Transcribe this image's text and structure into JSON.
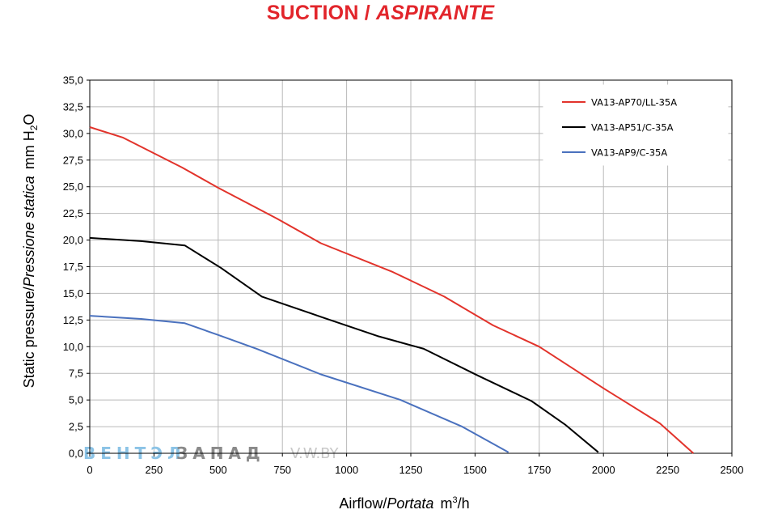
{
  "title": {
    "main": "SUCTION",
    "sep": " / ",
    "italic": "ASPIRANTE"
  },
  "colors": {
    "title": "#e2252b",
    "grid": "#b9b9b9"
  },
  "axes": {
    "ylabel_main": "Static pressure/",
    "ylabel_italic": "Pressione statica",
    "ylabel_unit_prefix": "mm  H",
    "ylabel_unit_sub": "2",
    "ylabel_unit_suffix": "O",
    "xlabel_main": "Airflow/",
    "xlabel_italic": "Portata",
    "xlabel_unit_prefix": "m",
    "xlabel_unit_sup": "3",
    "xlabel_unit_suffix": "/h"
  },
  "watermark": {
    "part1": "ВЕНТЭЛ",
    "part2": "ЗАПАД",
    "part3": "V.W.BY"
  },
  "chart_data": {
    "type": "line",
    "xlim": [
      0,
      2500
    ],
    "ylim": [
      0,
      35
    ],
    "xticks": [
      0,
      250,
      500,
      750,
      1000,
      1250,
      1500,
      1750,
      2000,
      2250,
      2500
    ],
    "yticks": [
      0,
      2.5,
      5,
      7.5,
      10,
      12.5,
      15,
      17.5,
      20,
      22.5,
      25,
      27.5,
      30,
      32.5,
      35
    ],
    "xtick_labels": [
      "0",
      "250",
      "500",
      "750",
      "1000",
      "1250",
      "1500",
      "1750",
      "2000",
      "2250",
      "2500"
    ],
    "ytick_labels": [
      "0,0",
      "2,5",
      "5,0",
      "7,5",
      "10,0",
      "12,5",
      "15,0",
      "17,5",
      "20,0",
      "22,5",
      "25,0",
      "27,5",
      "30,0",
      "32,5",
      "35,0"
    ],
    "grid": true,
    "legend_position": "top-right",
    "series": [
      {
        "name": "VA13-AP70/LL-35A",
        "color": "#e2332b",
        "x": [
          0,
          130,
          360,
          500,
          730,
          900,
          1180,
          1380,
          1570,
          1750,
          2000,
          2220,
          2350
        ],
        "y": [
          30.6,
          29.6,
          26.8,
          24.9,
          22.0,
          19.7,
          17.0,
          14.7,
          12.0,
          10.0,
          6.1,
          2.8,
          0
        ]
      },
      {
        "name": "VA13-AP51/C-35A",
        "color": "#000000",
        "x": [
          0,
          200,
          370,
          510,
          670,
          900,
          1120,
          1300,
          1510,
          1720,
          1850,
          1980
        ],
        "y": [
          20.2,
          19.9,
          19.5,
          17.4,
          14.7,
          12.8,
          11.0,
          9.8,
          7.3,
          4.9,
          2.7,
          0.1
        ]
      },
      {
        "name": "VA13-AP9/C-35A",
        "color": "#4a71be",
        "x": [
          0,
          200,
          370,
          500,
          650,
          900,
          1210,
          1450,
          1630
        ],
        "y": [
          12.9,
          12.6,
          12.2,
          11.1,
          9.8,
          7.4,
          5.0,
          2.5,
          0.1
        ]
      }
    ]
  }
}
